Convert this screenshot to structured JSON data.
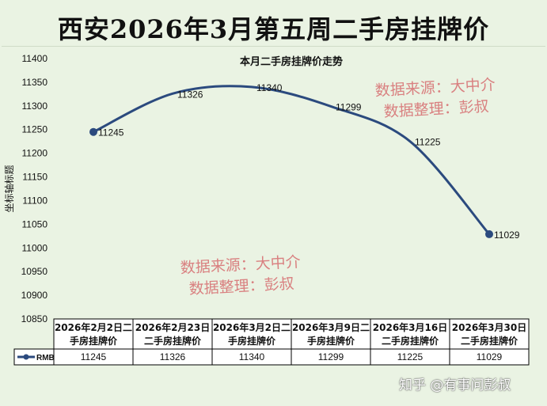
{
  "banner": {
    "title": "西安2026年3月第五周二手房挂牌价"
  },
  "watermark": {
    "line1": "数据来源：大中介",
    "line2": "数据整理：彭叔"
  },
  "footer": {
    "zhihu": "知乎 @有事问彭叔"
  },
  "chart_data": {
    "type": "line",
    "title": "本月二手房挂牌价走势",
    "xlabel": "",
    "ylabel": "坐标轴标题",
    "ylim": [
      10850,
      11400
    ],
    "yticks": [
      11400,
      11350,
      11300,
      11250,
      11200,
      11150,
      11100,
      11050,
      11000,
      10950,
      10900,
      10850
    ],
    "grid": false,
    "legend_position": "data-table",
    "smooth": true,
    "line_color": "#2b4a7e",
    "categories": [
      [
        "2026年2月2日二",
        "手房挂牌价"
      ],
      [
        "2026年2月23日",
        "二手房挂牌价"
      ],
      [
        "2026年3月2日二",
        "手房挂牌价"
      ],
      [
        "2026年3月9日二",
        "手房挂牌价"
      ],
      [
        "2026年3月16日",
        "二手房挂牌价"
      ],
      [
        "2026年3月30日",
        "二手房挂牌价"
      ]
    ],
    "series": [
      {
        "name": "RMB",
        "values": [
          11245,
          11326,
          11340,
          11299,
          11225,
          11029
        ],
        "markers": [
          true,
          false,
          false,
          false,
          false,
          true
        ]
      }
    ]
  }
}
